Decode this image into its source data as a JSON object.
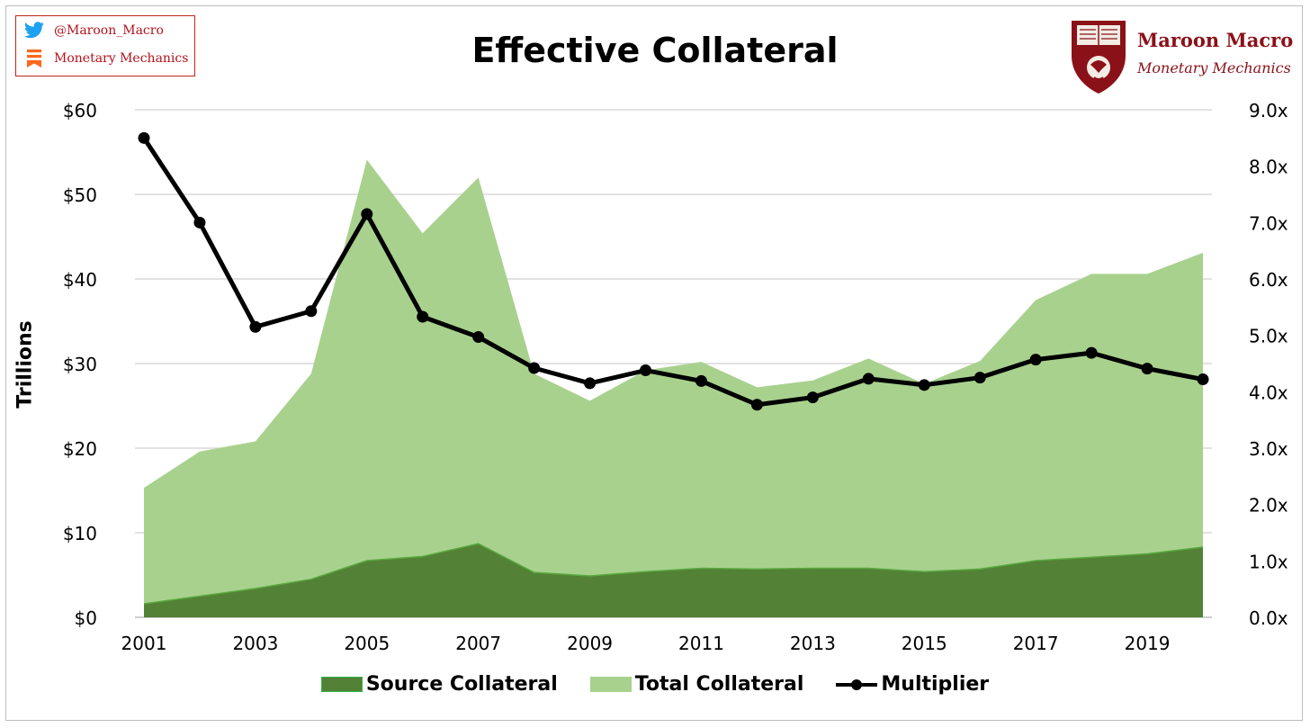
{
  "badge": {
    "twitter_handle": "@Maroon_Macro",
    "substack_name": "Monetary Mechanics"
  },
  "brand": {
    "name": "Maroon Macro",
    "subtitle": "Monetary Mechanics"
  },
  "colors": {
    "source": "#538135",
    "total": "#a9d18e",
    "multiplier": "#000000",
    "brand_red": "#b5121b",
    "grid": "#d9d9d9"
  },
  "chart_data": {
    "type": "area",
    "title": "Effective Collateral",
    "ylabel": "Trillions",
    "xlabel": "",
    "x": [
      2001,
      2002,
      2003,
      2004,
      2005,
      2006,
      2007,
      2008,
      2009,
      2010,
      2011,
      2012,
      2013,
      2014,
      2015,
      2016,
      2017,
      2018,
      2019,
      2020
    ],
    "x_tick_labels": [
      "2001",
      "2003",
      "2005",
      "2007",
      "2009",
      "2011",
      "2013",
      "2015",
      "2017",
      "2019"
    ],
    "ylim": [
      0,
      60
    ],
    "y_tick_labels": [
      "$0",
      "$10",
      "$20",
      "$30",
      "$40",
      "$50",
      "$60"
    ],
    "y2lim": [
      0,
      9
    ],
    "y2_tick_labels": [
      "0.0x",
      "1.0x",
      "2.0x",
      "3.0x",
      "4.0x",
      "5.0x",
      "6.0x",
      "7.0x",
      "8.0x",
      "9.0x"
    ],
    "grid": true,
    "legend_position": "bottom",
    "series": [
      {
        "name": "Source Collateral",
        "type": "area",
        "axis": "left",
        "values": [
          1.6,
          2.5,
          3.4,
          4.5,
          6.7,
          7.2,
          8.7,
          5.3,
          4.9,
          5.4,
          5.8,
          5.7,
          5.8,
          5.8,
          5.4,
          5.7,
          6.7,
          7.1,
          7.5,
          8.3
        ]
      },
      {
        "name": "Total Collateral",
        "type": "area",
        "axis": "left",
        "values": [
          15.3,
          19.6,
          20.8,
          28.8,
          54.1,
          45.4,
          52.0,
          28.8,
          25.6,
          29.2,
          30.2,
          27.2,
          28.0,
          30.6,
          27.6,
          30.3,
          37.5,
          40.6,
          40.6,
          43.1
        ]
      },
      {
        "name": "Multiplier",
        "type": "line",
        "axis": "right",
        "values": [
          8.5,
          7.0,
          5.15,
          5.43,
          7.15,
          5.33,
          4.97,
          4.42,
          4.15,
          4.38,
          4.19,
          3.77,
          3.9,
          4.23,
          4.12,
          4.25,
          4.57,
          4.69,
          4.41,
          4.22
        ]
      }
    ]
  }
}
